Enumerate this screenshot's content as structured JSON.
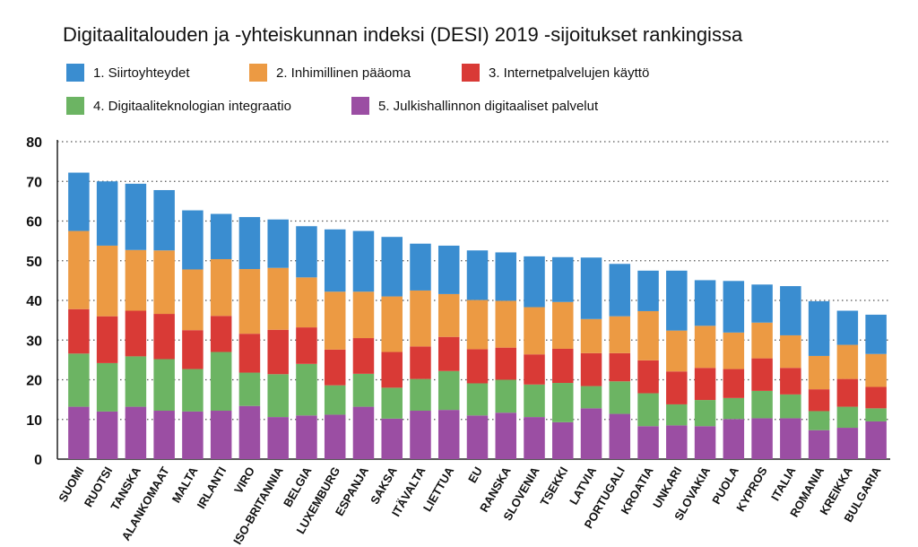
{
  "title": "Digitaalitalouden ja -yhteiskunnan indeksi (DESI) 2019 -sijoitukset rankingissa",
  "legend": [
    {
      "label": "1. Siirtoyhteydet",
      "color": "#3a8dd0"
    },
    {
      "label": "2. Inhimillinen pääoma",
      "color": "#ec9a43"
    },
    {
      "label": "3. Internetpalvelujen käyttö",
      "color": "#d93a36"
    },
    {
      "label": "4. Digitaaliteknologian integraatio",
      "color": "#6cb463"
    },
    {
      "label": "5. Julkishallinnon digitaaliset palvelut",
      "color": "#9b4ea3"
    }
  ],
  "chart_data": {
    "type": "bar",
    "stacked": true,
    "title": "Digitaalitalouden ja -yhteiskunnan indeksi (DESI) 2019 -sijoitukset rankingissa",
    "xlabel": "",
    "ylabel": "",
    "ylim": [
      0,
      80
    ],
    "yticks": [
      0,
      10,
      20,
      30,
      40,
      50,
      60,
      70,
      80
    ],
    "grid": "horizontal dotted",
    "legend_position": "top",
    "categories": [
      "SUOMI",
      "RUOTSI",
      "TANSKA",
      "ALANKOMAAT",
      "MALTA",
      "IRLANTI",
      "VIRO",
      "ISO-BRITANNIA",
      "BELGIA",
      "LUXEMBURG",
      "ESPANJA",
      "SAKSA",
      "ITÄVALTA",
      "LIETTUA",
      "EU",
      "RANSKA",
      "SLOVENIA",
      "TSEKKI",
      "LATVIA",
      "PORTUGALI",
      "KROATIA",
      "UNKARI",
      "SLOVAKIA",
      "PUOLA",
      "KYPROS",
      "ITALIA",
      "ROMANIA",
      "KREIKKA",
      "BULGARIA"
    ],
    "series": [
      {
        "name": "5. Julkishallinnon digitaaliset palvelut",
        "color": "#9b4ea3",
        "values": [
          13.2,
          12.0,
          13.2,
          12.2,
          12.0,
          12.2,
          13.4,
          10.6,
          11.0,
          11.2,
          13.2,
          10.2,
          12.2,
          12.4,
          11.0,
          11.7,
          10.6,
          9.3,
          12.8,
          11.4,
          8.3,
          8.5,
          8.3,
          10.1,
          10.3,
          10.3,
          7.3,
          7.9,
          9.5
        ]
      },
      {
        "name": "4. Digitaaliteknologian integraatio",
        "color": "#6cb463",
        "values": [
          13.4,
          12.2,
          12.7,
          13.0,
          10.7,
          14.8,
          8.4,
          10.8,
          13.0,
          7.4,
          8.3,
          7.8,
          8.0,
          9.8,
          8.1,
          8.3,
          8.2,
          9.9,
          5.6,
          8.2,
          8.3,
          5.3,
          6.6,
          5.3,
          6.9,
          6.0,
          4.8,
          5.3,
          3.3
        ]
      },
      {
        "name": "3. Internetpalvelujen käyttö",
        "color": "#d93a36",
        "values": [
          11.2,
          11.8,
          11.5,
          11.4,
          9.8,
          9.1,
          9.8,
          11.2,
          9.2,
          9.0,
          9.0,
          9.0,
          8.2,
          8.6,
          8.6,
          8.1,
          7.6,
          8.6,
          8.3,
          7.1,
          8.3,
          8.3,
          8.1,
          7.3,
          8.2,
          6.7,
          5.5,
          7.0,
          5.4
        ]
      },
      {
        "name": "2. Inhimillinen pääoma",
        "color": "#ec9a43",
        "values": [
          19.7,
          17.8,
          15.3,
          16.0,
          15.3,
          14.3,
          16.3,
          15.6,
          12.6,
          14.6,
          11.7,
          14.0,
          14.1,
          10.8,
          12.4,
          11.8,
          11.9,
          11.8,
          8.6,
          9.3,
          12.4,
          10.3,
          10.6,
          9.2,
          9.0,
          8.2,
          8.4,
          8.6,
          8.3
        ]
      },
      {
        "name": "1. Siirtoyhteydet",
        "color": "#3a8dd0",
        "values": [
          14.7,
          16.2,
          16.7,
          15.2,
          14.9,
          11.4,
          13.1,
          12.2,
          12.9,
          15.7,
          15.3,
          15.0,
          11.8,
          12.2,
          12.5,
          12.2,
          12.8,
          11.3,
          15.5,
          13.2,
          10.2,
          15.1,
          11.5,
          13.0,
          9.6,
          12.4,
          13.8,
          8.6,
          9.9
        ]
      }
    ]
  }
}
